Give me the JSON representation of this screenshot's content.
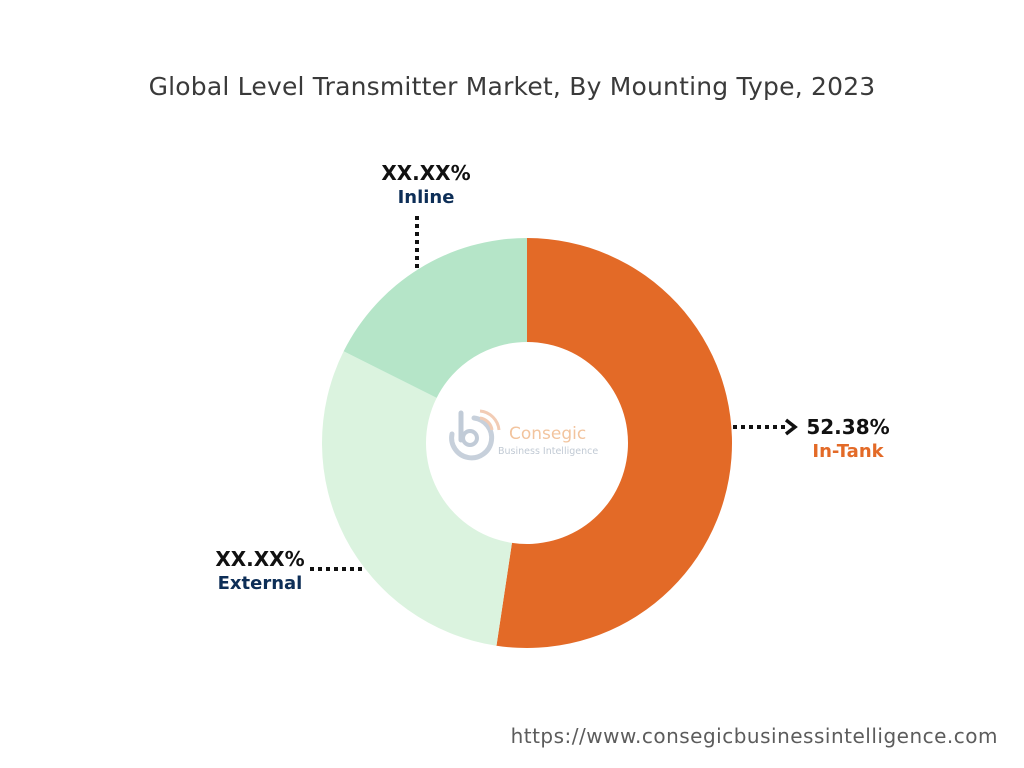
{
  "title": "Global Level Transmitter Market, By Mounting Type, 2023",
  "chart_data": {
    "type": "pie",
    "title": "Global Level Transmitter Market, By Mounting Type, 2023",
    "hole": true,
    "categories": [
      "In-Tank",
      "External",
      "Inline"
    ],
    "values": [
      52.38,
      30.0,
      17.62
    ],
    "value_labels": [
      "52.38%",
      "XX.XX%",
      "XX.XX%"
    ],
    "colors": [
      "#E36A27",
      "#DBF3DF",
      "#B5E5C8"
    ],
    "label_colors": [
      "#E36A27",
      "#0D2E57",
      "#0D2E57"
    ]
  },
  "labels": {
    "intank": {
      "pct": "52.38%",
      "name": "In-Tank"
    },
    "external": {
      "pct": "XX.XX%",
      "name": "External"
    },
    "inline": {
      "pct": "XX.XX%",
      "name": "Inline"
    }
  },
  "logo": {
    "name": "Consegic",
    "tagline": "Business Intelligence"
  },
  "source_url": "https://www.consegicbusinessintelligence.com"
}
